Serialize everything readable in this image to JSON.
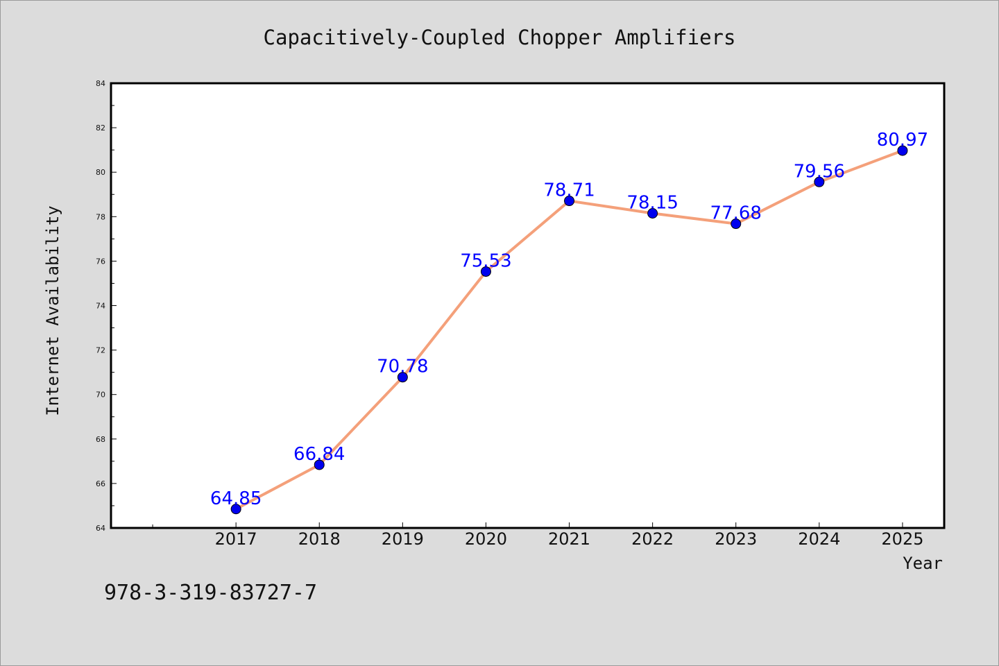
{
  "chart_data": {
    "type": "line",
    "title": "Capacitively-Coupled Chopper Amplifiers",
    "xlabel": "Year",
    "ylabel": "Internet Availability",
    "categories": [
      "2017",
      "2018",
      "2019",
      "2020",
      "2021",
      "2022",
      "2023",
      "2024",
      "2025"
    ],
    "series": [
      {
        "values": [
          64.85,
          66.84,
          70.78,
          75.53,
          78.71,
          78.15,
          77.68,
          79.56,
          80.97
        ],
        "labels": [
          "64.85",
          "66.84",
          "70.78",
          "75.53",
          "78.71",
          "78.15",
          "77.68",
          "79.56",
          "80.97"
        ],
        "line_color": "#f4a07a",
        "marker_color": "#0000ee"
      }
    ],
    "ylim": [
      64,
      84
    ],
    "yticks": [
      "64",
      "66",
      "68",
      "70",
      "72",
      "74",
      "76",
      "78",
      "80",
      "82",
      "84"
    ],
    "grid": false,
    "legend": "none"
  },
  "footnote": "978-3-319-83727-7",
  "colors": {
    "background": "#dcdcdc",
    "plot_background": "#ffffff",
    "data_label": "#0000ff"
  }
}
